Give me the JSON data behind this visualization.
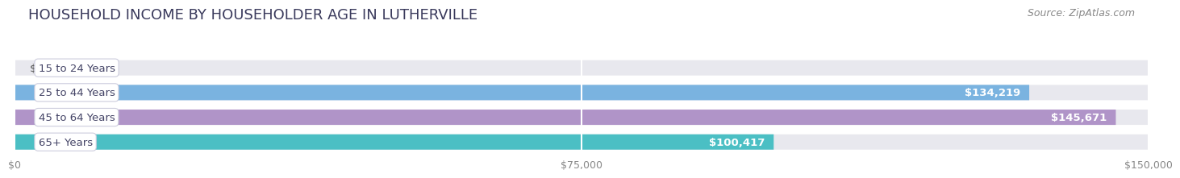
{
  "title": "HOUSEHOLD INCOME BY HOUSEHOLDER AGE IN LUTHERVILLE",
  "source": "Source: ZipAtlas.com",
  "categories": [
    "15 to 24 Years",
    "25 to 44 Years",
    "45 to 64 Years",
    "65+ Years"
  ],
  "values": [
    0,
    134219,
    145671,
    100417
  ],
  "bar_colors": [
    "#e8919a",
    "#7ab3e0",
    "#b094c8",
    "#4bbfc4"
  ],
  "bar_bg_color": "#e8e8ee",
  "xlim": [
    0,
    150000
  ],
  "xticks": [
    0,
    75000,
    150000
  ],
  "xtick_labels": [
    "$0",
    "$75,000",
    "$150,000"
  ],
  "value_labels": [
    "$0",
    "$134,219",
    "$145,671",
    "$100,417"
  ],
  "title_fontsize": 13,
  "source_fontsize": 9,
  "label_fontsize": 9.5,
  "tick_fontsize": 9,
  "background_color": "#ffffff",
  "title_color": "#3a3a5c",
  "source_color": "#888888"
}
